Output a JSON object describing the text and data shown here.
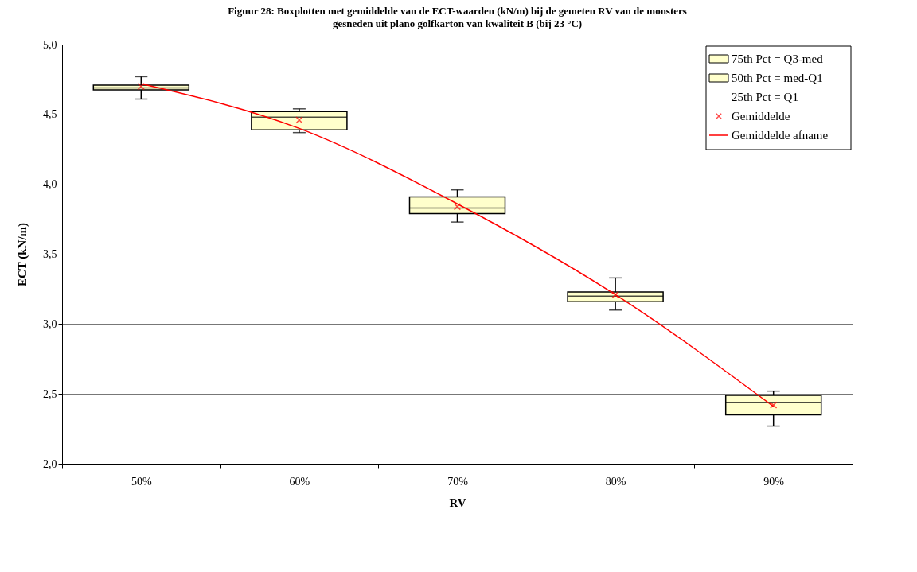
{
  "chart_data": {
    "type": "box",
    "title": "Figuur 28: Boxplotten met gemiddelde van de ECT-waarden (kN/m) bij de gemeten RV van de monsters",
    "subtitle": "gesneden uit plano golfkarton van kwaliteit B (bij 23 °C)",
    "xlabel": "RV",
    "ylabel": "ECT (kN/m)",
    "categories": [
      "50%",
      "60%",
      "70%",
      "80%",
      "90%"
    ],
    "ylim": [
      2.0,
      5.0
    ],
    "yticks": [
      {
        "value": 2.0,
        "label": "2,0"
      },
      {
        "value": 2.5,
        "label": "2,5"
      },
      {
        "value": 3.0,
        "label": "3,0"
      },
      {
        "value": 3.5,
        "label": "3,5"
      },
      {
        "value": 4.0,
        "label": "4,0"
      },
      {
        "value": 4.5,
        "label": "4,5"
      },
      {
        "value": 5.0,
        "label": "5,0"
      }
    ],
    "grid": "y",
    "legend": "top right",
    "annotations": [
      "50th Pct = med-Q1",
      "25th Pct = Q1"
    ],
    "series": [
      {
        "name": "75th Pct = Q3-med",
        "color": "#ffffcc",
        "boxes": [
          {
            "low": 4.61,
            "q1": 4.675,
            "median": 4.69,
            "q3": 4.71,
            "high": 4.77
          },
          {
            "low": 4.37,
            "q1": 4.39,
            "median": 4.48,
            "q3": 4.52,
            "high": 4.54
          },
          {
            "low": 3.73,
            "q1": 3.79,
            "median": 3.83,
            "q3": 3.91,
            "high": 3.96
          },
          {
            "low": 3.1,
            "q1": 3.16,
            "median": 3.2,
            "q3": 3.23,
            "high": 3.33
          },
          {
            "low": 2.27,
            "q1": 2.35,
            "median": 2.44,
            "q3": 2.49,
            "high": 2.52
          }
        ]
      },
      {
        "name": "Gemiddelde",
        "type": "scatter",
        "color": "#ff0000",
        "marker": "cross",
        "values": [
          4.7,
          4.46,
          3.84,
          3.21,
          2.42
        ]
      },
      {
        "name": "Gemiddelde afname",
        "type": "line",
        "color": "#ff0000",
        "marker": "none",
        "values": [
          4.72,
          4.4,
          3.86,
          3.21,
          2.41
        ]
      }
    ]
  }
}
